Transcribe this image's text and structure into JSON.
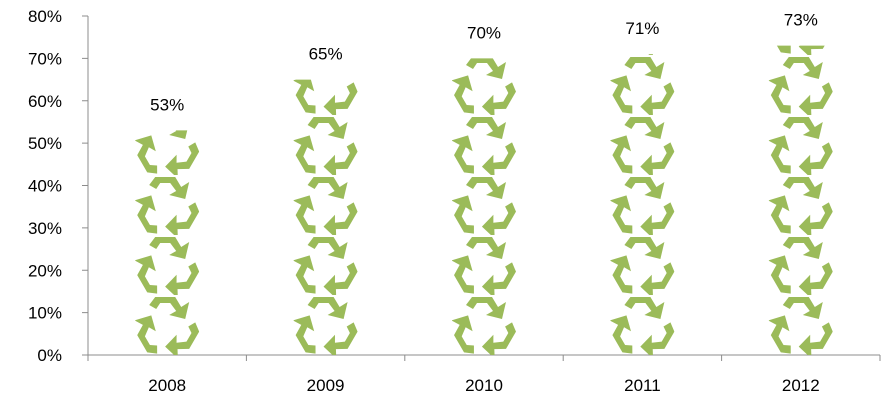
{
  "chart_data": {
    "type": "bar",
    "categories": [
      "2008",
      "2009",
      "2010",
      "2011",
      "2012"
    ],
    "values": [
      53,
      65,
      70,
      71,
      73
    ],
    "data_labels": [
      "53%",
      "65%",
      "70%",
      "71%",
      "73%"
    ],
    "y_ticks": [
      "0%",
      "10%",
      "20%",
      "30%",
      "40%",
      "50%",
      "60%",
      "70%",
      "80%"
    ],
    "ylim": [
      0,
      80
    ],
    "grid": false,
    "legend": "none",
    "bar_fill": "recycle-icon",
    "colors": {
      "bar": "#9bbb59",
      "axis": "#8c8c8c",
      "text": "#000000"
    }
  }
}
